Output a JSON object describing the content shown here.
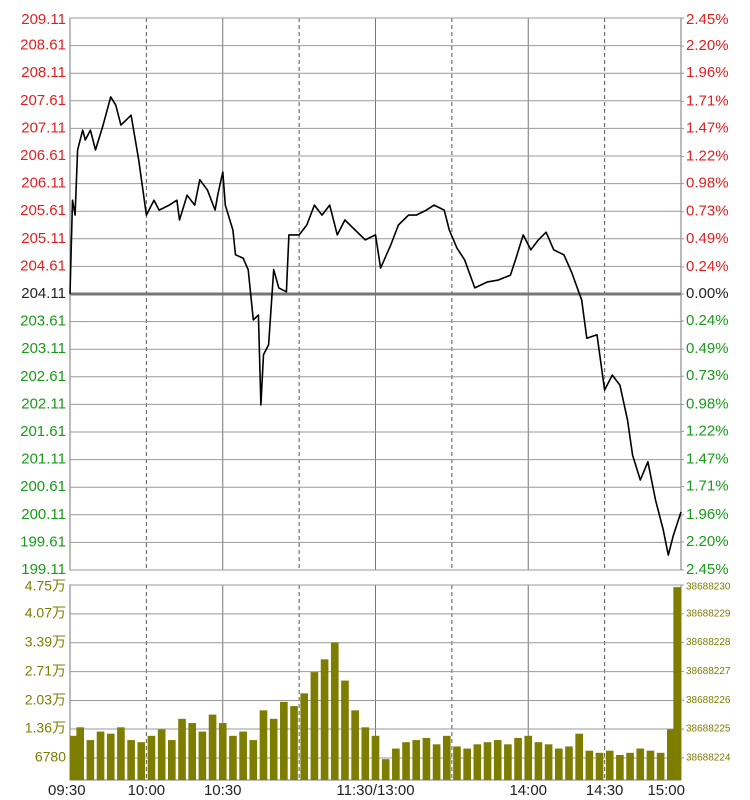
{
  "chart_data": [
    {
      "type": "line",
      "color": "#000000",
      "prev_close": 204.11,
      "up_color": "#e02020",
      "down_color": "#1a9a1a",
      "flat_color": "#222222",
      "xlim": [
        0,
        240
      ],
      "xgrid_solid": [
        60,
        120,
        180
      ],
      "xgrid_dashed": [
        30,
        90,
        150,
        210
      ],
      "ylim": [
        199.11,
        209.11
      ],
      "yticks": [
        209.11,
        208.61,
        208.11,
        207.61,
        207.11,
        206.61,
        206.11,
        205.61,
        205.11,
        204.61,
        204.11,
        203.61,
        203.11,
        202.61,
        202.11,
        201.61,
        201.11,
        200.61,
        200.11,
        199.61,
        199.11
      ],
      "y2lim": [
        -2.45,
        2.45
      ],
      "y2ticks": [
        {
          "value": 2.45,
          "label": "2.45%"
        },
        {
          "value": 2.2,
          "label": "2.20%"
        },
        {
          "value": 1.96,
          "label": "1.96%"
        },
        {
          "value": 1.71,
          "label": "1.71%"
        },
        {
          "value": 1.47,
          "label": "1.47%"
        },
        {
          "value": 1.22,
          "label": "1.22%"
        },
        {
          "value": 0.98,
          "label": "0.98%"
        },
        {
          "value": 0.73,
          "label": "0.73%"
        },
        {
          "value": 0.49,
          "label": "0.49%"
        },
        {
          "value": 0.24,
          "label": "0.24%"
        },
        {
          "value": 0,
          "label": "0.00%"
        },
        {
          "value": -0.24,
          "label": "0.24%"
        },
        {
          "value": -0.49,
          "label": "0.49%"
        },
        {
          "value": -0.73,
          "label": "0.73%"
        },
        {
          "value": -0.98,
          "label": "0.98%"
        },
        {
          "value": -1.22,
          "label": "1.22%"
        },
        {
          "value": -1.47,
          "label": "1.47%"
        },
        {
          "value": -1.71,
          "label": "1.71%"
        },
        {
          "value": -1.96,
          "label": "1.96%"
        },
        {
          "value": -2.2,
          "label": "2.20%"
        },
        {
          "value": -2.45,
          "label": "2.45%"
        }
      ],
      "x": [
        0,
        1,
        2,
        3,
        5,
        6,
        8,
        10,
        13,
        16,
        18,
        20,
        24,
        27,
        30,
        33,
        35,
        39,
        42,
        43,
        46,
        49,
        51,
        54,
        57,
        58,
        60,
        61,
        64,
        65,
        68,
        70,
        72,
        74,
        75,
        76,
        78,
        80,
        82,
        85,
        86,
        90,
        93,
        96,
        99,
        102,
        105,
        108,
        112,
        116,
        120,
        122,
        126,
        129,
        133,
        136,
        140,
        143,
        147,
        149,
        152,
        155,
        159,
        164,
        168,
        173,
        175,
        178,
        181,
        184,
        187,
        190,
        194,
        197,
        201,
        203,
        207,
        210,
        213,
        216,
        219,
        221,
        224,
        227,
        230,
        233,
        235,
        237,
        240
      ],
      "values": [
        204.11,
        205.81,
        205.54,
        206.72,
        207.08,
        206.9,
        207.08,
        206.72,
        207.17,
        207.68,
        207.53,
        207.17,
        207.35,
        206.54,
        205.54,
        205.81,
        205.63,
        205.72,
        205.81,
        205.45,
        205.9,
        205.72,
        206.18,
        205.99,
        205.63,
        205.9,
        206.32,
        205.72,
        205.27,
        204.82,
        204.76,
        204.55,
        203.64,
        203.73,
        202.1,
        203.01,
        203.19,
        204.55,
        204.22,
        204.15,
        205.18,
        205.18,
        205.36,
        205.72,
        205.54,
        205.72,
        205.18,
        205.45,
        205.27,
        205.09,
        205.18,
        204.58,
        205.0,
        205.36,
        205.54,
        205.54,
        205.63,
        205.72,
        205.63,
        205.27,
        204.94,
        204.73,
        204.22,
        204.33,
        204.36,
        204.45,
        204.73,
        205.18,
        204.91,
        205.09,
        205.23,
        204.91,
        204.82,
        204.51,
        204.0,
        203.31,
        203.37,
        202.37,
        202.64,
        202.46,
        201.83,
        201.19,
        200.74,
        201.07,
        200.38,
        199.84,
        199.38,
        199.74,
        200.16
      ]
    },
    {
      "type": "bar",
      "color": "#7d7d00",
      "label_color": "#7d7d00",
      "xlim": [
        0,
        240
      ],
      "xgrid_solid": [
        60,
        120,
        180
      ],
      "xgrid_dashed": [
        30,
        90,
        150,
        210
      ],
      "xticks": [
        {
          "value": 0,
          "label": "09:30"
        },
        {
          "value": 30,
          "label": "10:00"
        },
        {
          "value": 60,
          "label": "10:30"
        },
        {
          "value": 120,
          "label": "11:30/13:00"
        },
        {
          "value": 180,
          "label": "14:00"
        },
        {
          "value": 210,
          "label": "14:30"
        },
        {
          "value": 240,
          "label": "15:00"
        }
      ],
      "ylim": [
        1600,
        47500
      ],
      "yticks": [
        {
          "value": 47500,
          "label": "4.75万"
        },
        {
          "value": 40700,
          "label": "4.07万"
        },
        {
          "value": 33900,
          "label": "3.39万"
        },
        {
          "value": 27100,
          "label": "2.71万"
        },
        {
          "value": 20300,
          "label": "2.03万"
        },
        {
          "value": 13600,
          "label": "1.36万"
        },
        6780
      ],
      "y2lim": [
        38688223.23,
        38688230
      ],
      "y2ticks": [
        38688230,
        38688229,
        38688228,
        38688227,
        38688226,
        38688225,
        38688224
      ],
      "x": [
        0,
        4,
        8,
        12,
        16,
        20,
        24,
        28,
        32,
        36,
        40,
        44,
        48,
        52,
        56,
        60,
        64,
        68,
        72,
        76,
        80,
        84,
        88,
        92,
        96,
        100,
        104,
        108,
        112,
        116,
        120,
        124,
        128,
        132,
        136,
        140,
        144,
        148,
        152,
        156,
        160,
        164,
        168,
        172,
        176,
        180,
        184,
        188,
        192,
        196,
        200,
        204,
        208,
        212,
        216,
        220,
        224,
        228,
        232,
        236,
        240
      ],
      "values": [
        12000,
        14000,
        11000,
        13000,
        12500,
        14000,
        11000,
        10500,
        12000,
        13500,
        11000,
        16000,
        15000,
        13000,
        17000,
        15000,
        12000,
        13000,
        11000,
        18000,
        16000,
        20000,
        19000,
        22000,
        27000,
        30000,
        34000,
        25000,
        18000,
        14000,
        12000,
        6500,
        9000,
        10500,
        11000,
        11500,
        10000,
        12000,
        9500,
        9000,
        10000,
        10500,
        11000,
        10000,
        11500,
        12000,
        10500,
        10000,
        9000,
        9500,
        12500,
        8500,
        8000,
        8500,
        7500,
        8000,
        9000,
        8500,
        8000,
        13500,
        47000
      ]
    }
  ]
}
